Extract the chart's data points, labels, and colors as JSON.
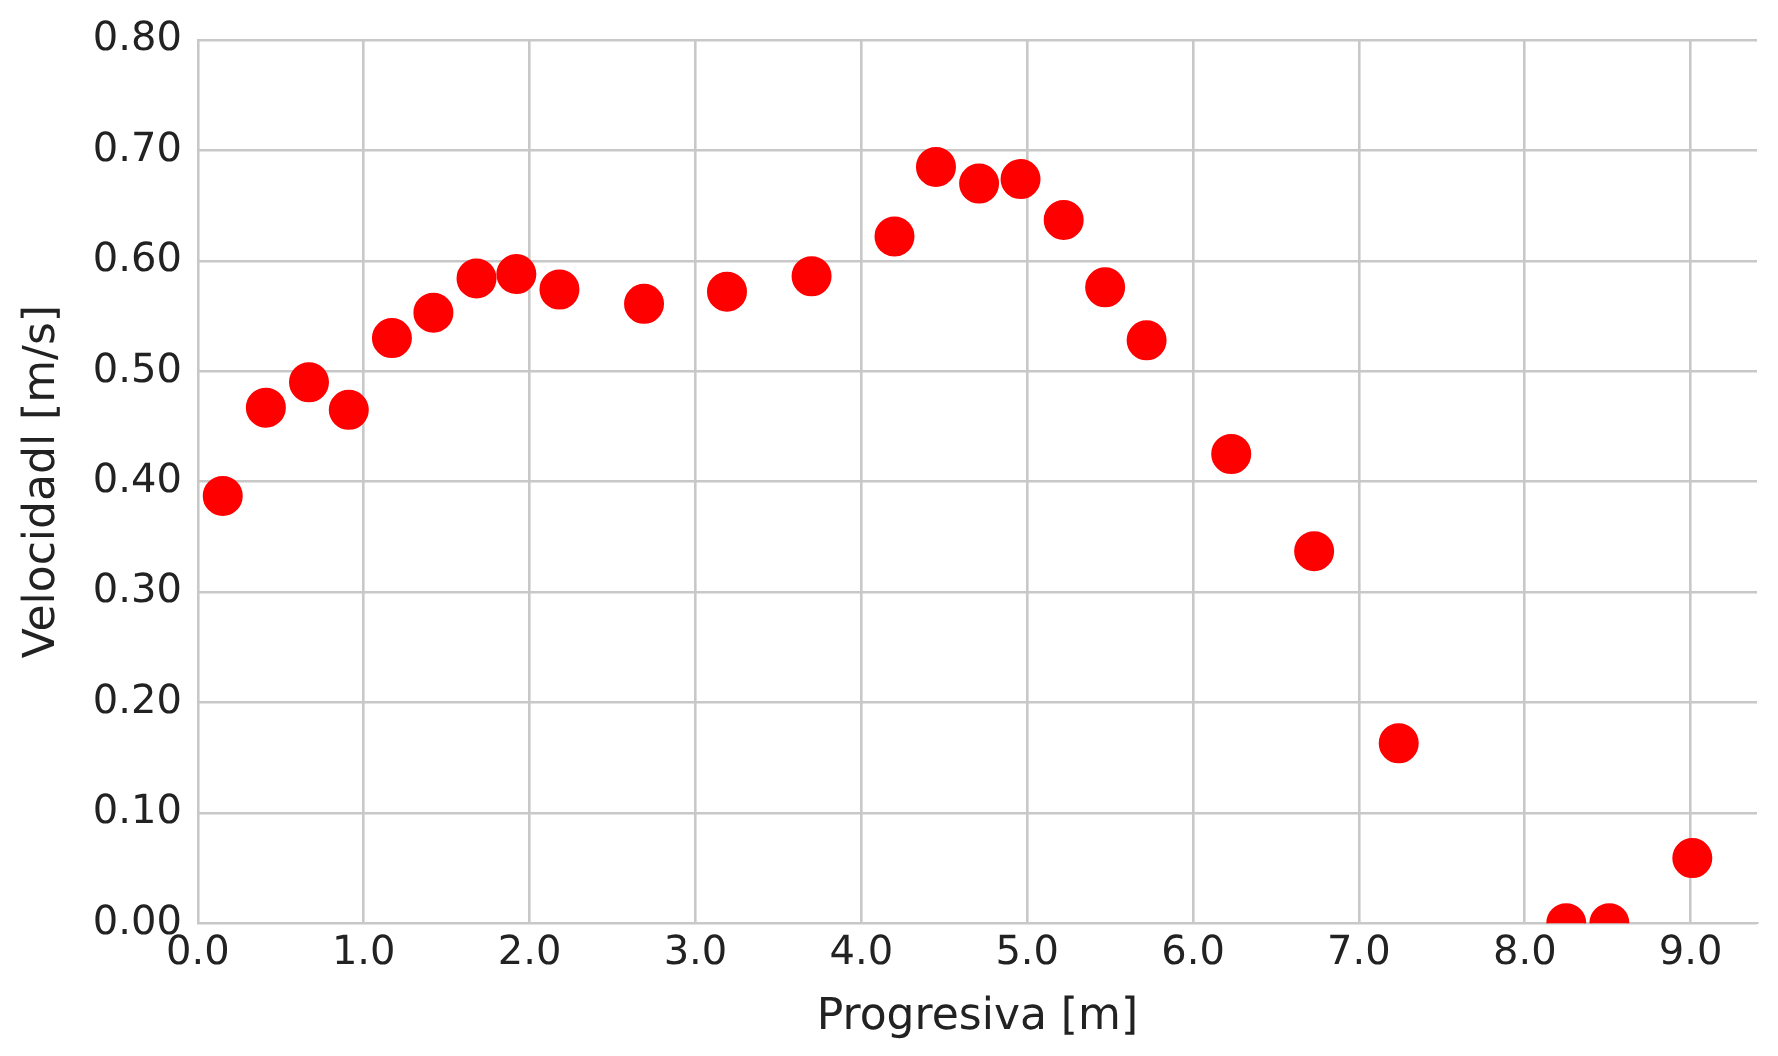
{
  "chart_data": {
    "type": "scatter",
    "xlabel": "Progresiva [m]",
    "ylabel": "Velocidadl [m/s]",
    "x": [
      0.15,
      0.41,
      0.67,
      0.91,
      1.17,
      1.42,
      1.68,
      1.92,
      2.18,
      2.69,
      3.19,
      3.7,
      4.2,
      4.45,
      4.71,
      4.96,
      5.22,
      5.47,
      5.72,
      6.23,
      6.73,
      7.24,
      8.25,
      8.51,
      9.01
    ],
    "series": [
      {
        "color": "#ff0000",
        "values": [
          0.387,
          0.467,
          0.49,
          0.465,
          0.53,
          0.553,
          0.584,
          0.588,
          0.574,
          0.561,
          0.572,
          0.586,
          0.622,
          0.685,
          0.67,
          0.674,
          0.637,
          0.576,
          0.528,
          0.425,
          0.337,
          0.163,
          0.0,
          0.0,
          0.059
        ]
      }
    ],
    "xlim": [
      0,
      9.4
    ],
    "xticks": [
      {
        "value": 0,
        "label": "0.0"
      },
      {
        "value": 1,
        "label": "1.0"
      },
      {
        "value": 2,
        "label": "2.0"
      },
      {
        "value": 3,
        "label": "3.0"
      },
      {
        "value": 4,
        "label": "4.0"
      },
      {
        "value": 5,
        "label": "5.0"
      },
      {
        "value": 6,
        "label": "6.0"
      },
      {
        "value": 7,
        "label": "7.0"
      },
      {
        "value": 8,
        "label": "8.0"
      },
      {
        "value": 9,
        "label": "9.0"
      }
    ],
    "ylim": [
      0,
      0.8
    ],
    "yticks": [
      {
        "value": 0,
        "label": "0.00"
      },
      {
        "value": 0.1,
        "label": "0.10"
      },
      {
        "value": 0.2,
        "label": "0.20"
      },
      {
        "value": 0.3,
        "label": "0.30"
      },
      {
        "value": 0.4,
        "label": "0.40"
      },
      {
        "value": 0.5,
        "label": "0.50"
      },
      {
        "value": 0.6,
        "label": "0.60"
      },
      {
        "value": 0.7,
        "label": "0.70"
      },
      {
        "value": 0.8,
        "label": "0.80"
      }
    ],
    "grid": true,
    "legend": false,
    "marker": "circle"
  }
}
